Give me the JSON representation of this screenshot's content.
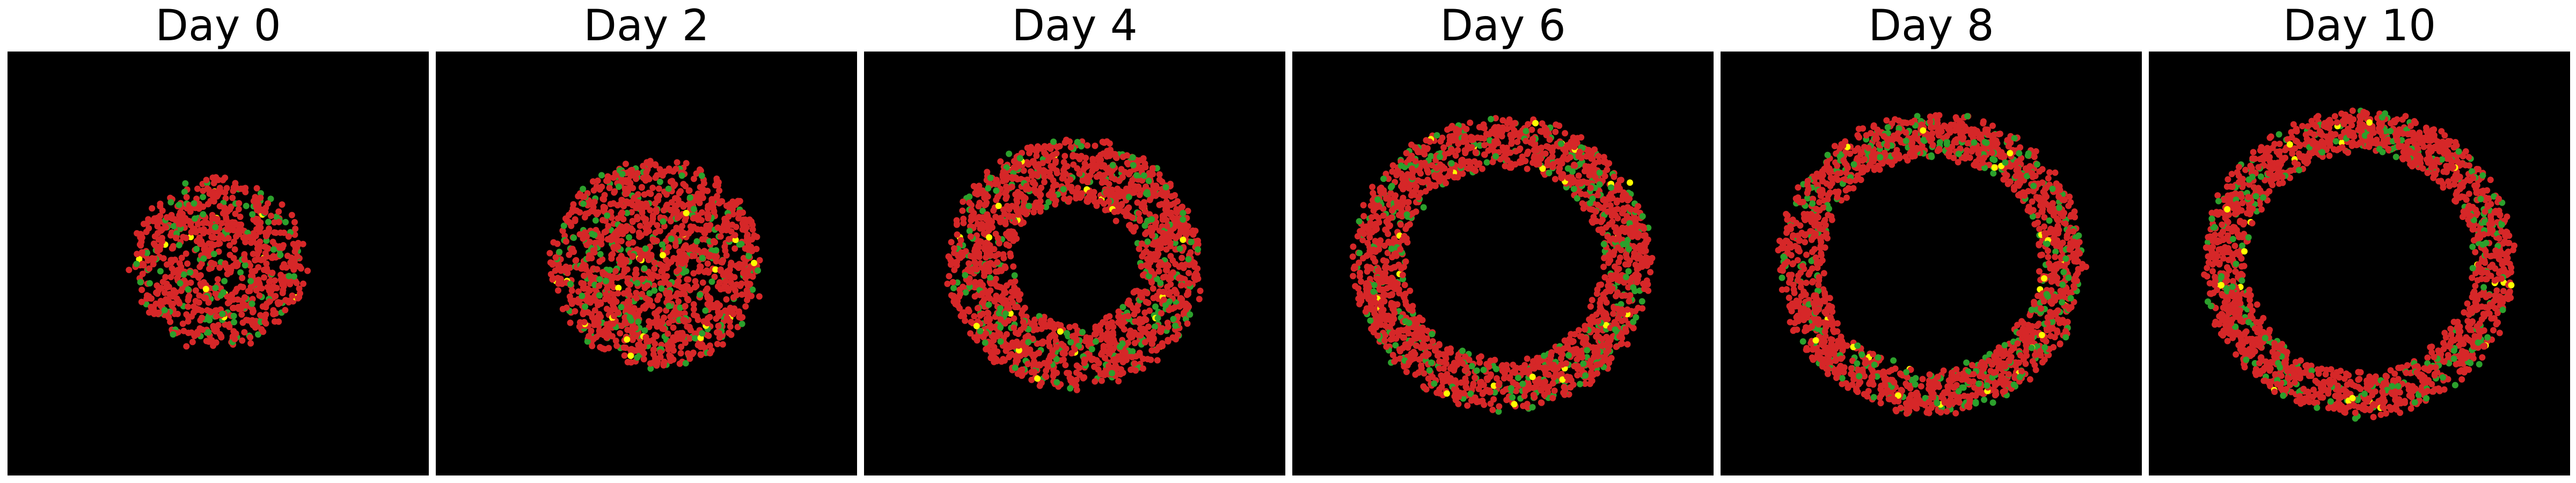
{
  "figure": {
    "panels": [
      {
        "title": "Day 0",
        "shape": "disc",
        "radius": 0.43,
        "inner": 0.0,
        "density": 1.0
      },
      {
        "title": "Day 2",
        "shape": "disc",
        "radius": 0.52,
        "inner": 0.0,
        "density": 1.15
      },
      {
        "title": "Day 4",
        "shape": "ring",
        "radius": 0.63,
        "inner": 0.32,
        "density": 1.25
      },
      {
        "title": "Day 6",
        "shape": "ring",
        "radius": 0.74,
        "inner": 0.5,
        "density": 1.35
      },
      {
        "title": "Day 8",
        "shape": "ring",
        "radius": 0.76,
        "inner": 0.55,
        "density": 1.4
      },
      {
        "title": "Day 10",
        "shape": "ring",
        "radius": 0.77,
        "inner": 0.57,
        "density": 1.45
      }
    ],
    "colors": {
      "background": "#000000",
      "cell_red": "#d62728",
      "cell_green": "#2ca02c",
      "cell_yellow": "#ffff00"
    }
  }
}
